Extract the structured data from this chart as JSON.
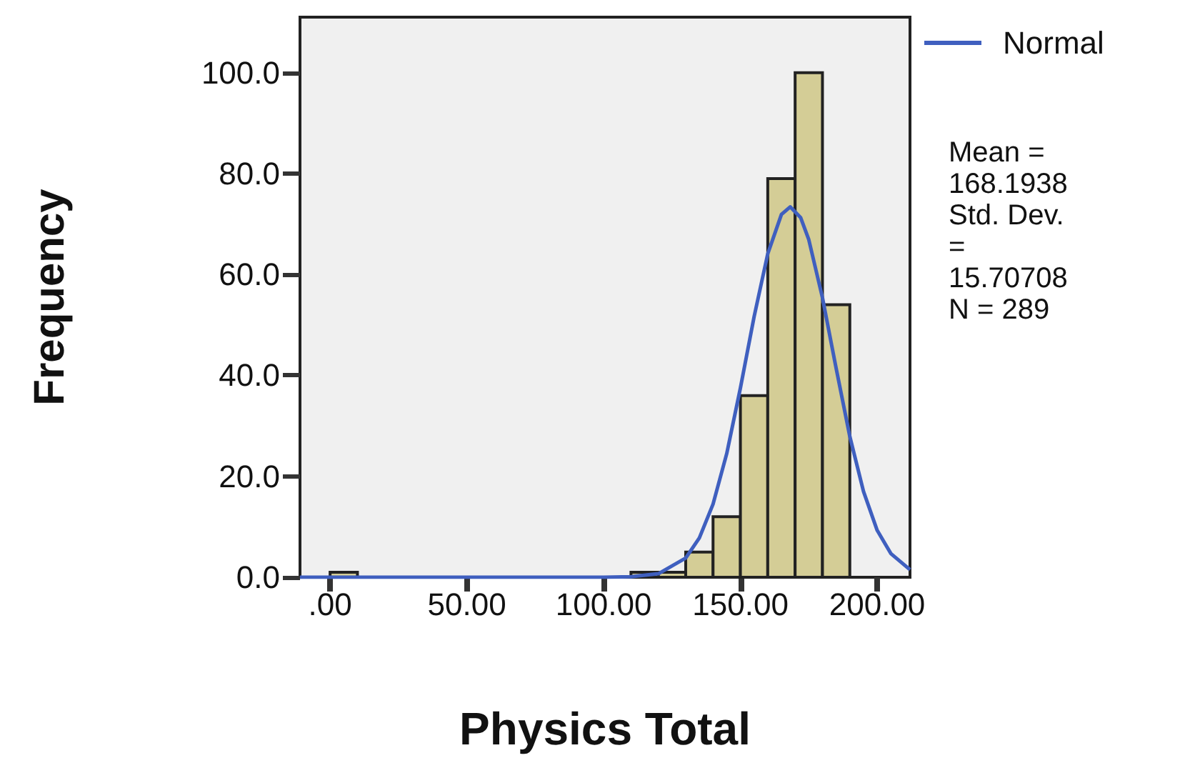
{
  "chart_data": {
    "type": "histogram",
    "xlabel": "Physics Total",
    "ylabel": "Frequency",
    "bins": [
      0,
      10,
      20,
      30,
      40,
      50,
      60,
      70,
      80,
      90,
      100,
      110,
      120,
      130,
      140,
      150,
      160,
      170,
      180,
      190
    ],
    "values": [
      1,
      0,
      0,
      0,
      0,
      0,
      0,
      0,
      0,
      0,
      0,
      1,
      1,
      5,
      12,
      36,
      79,
      100,
      54
    ],
    "color": "#d4cd96",
    "series": [
      {
        "type": "line",
        "name": "Normal",
        "color": "#3f5fbf",
        "x": [
          -11,
          100,
          110,
          120,
          130,
          135,
          140,
          145,
          150,
          155,
          160,
          165,
          168.2,
          172,
          175,
          180,
          185,
          190,
          195,
          200,
          205,
          212
        ],
        "values": [
          0,
          0,
          0.1,
          0.7,
          3.8,
          7.8,
          14.5,
          24.5,
          37.5,
          51.6,
          64.1,
          71.9,
          73.4,
          71.3,
          66.9,
          55.4,
          41.4,
          27.9,
          17.0,
          9.3,
          4.7,
          1.5
        ]
      }
    ],
    "xlim": [
      -11,
      212
    ],
    "xticks": [
      {
        "value": 0,
        "label": ".00"
      },
      {
        "value": 50,
        "label": "50.00"
      },
      {
        "value": 100,
        "label": "100.00"
      },
      {
        "value": 150,
        "label": "150.00"
      },
      {
        "value": 200,
        "label": "200.00"
      }
    ],
    "ylim": [
      0,
      111
    ],
    "yticks": [
      {
        "value": 0,
        "label": "0.0"
      },
      {
        "value": 20,
        "label": "20.0"
      },
      {
        "value": 40,
        "label": "40.0"
      },
      {
        "value": 60,
        "label": "60.0"
      },
      {
        "value": 80,
        "label": "80.0"
      },
      {
        "value": 100,
        "label": "100.0"
      }
    ],
    "grid": false,
    "legend": "top right",
    "marker": "none",
    "line_style": "solid",
    "annotations": [
      "Mean =\n168.1938\nStd. Dev.\n=\n15.70708\nN = 289"
    ]
  }
}
